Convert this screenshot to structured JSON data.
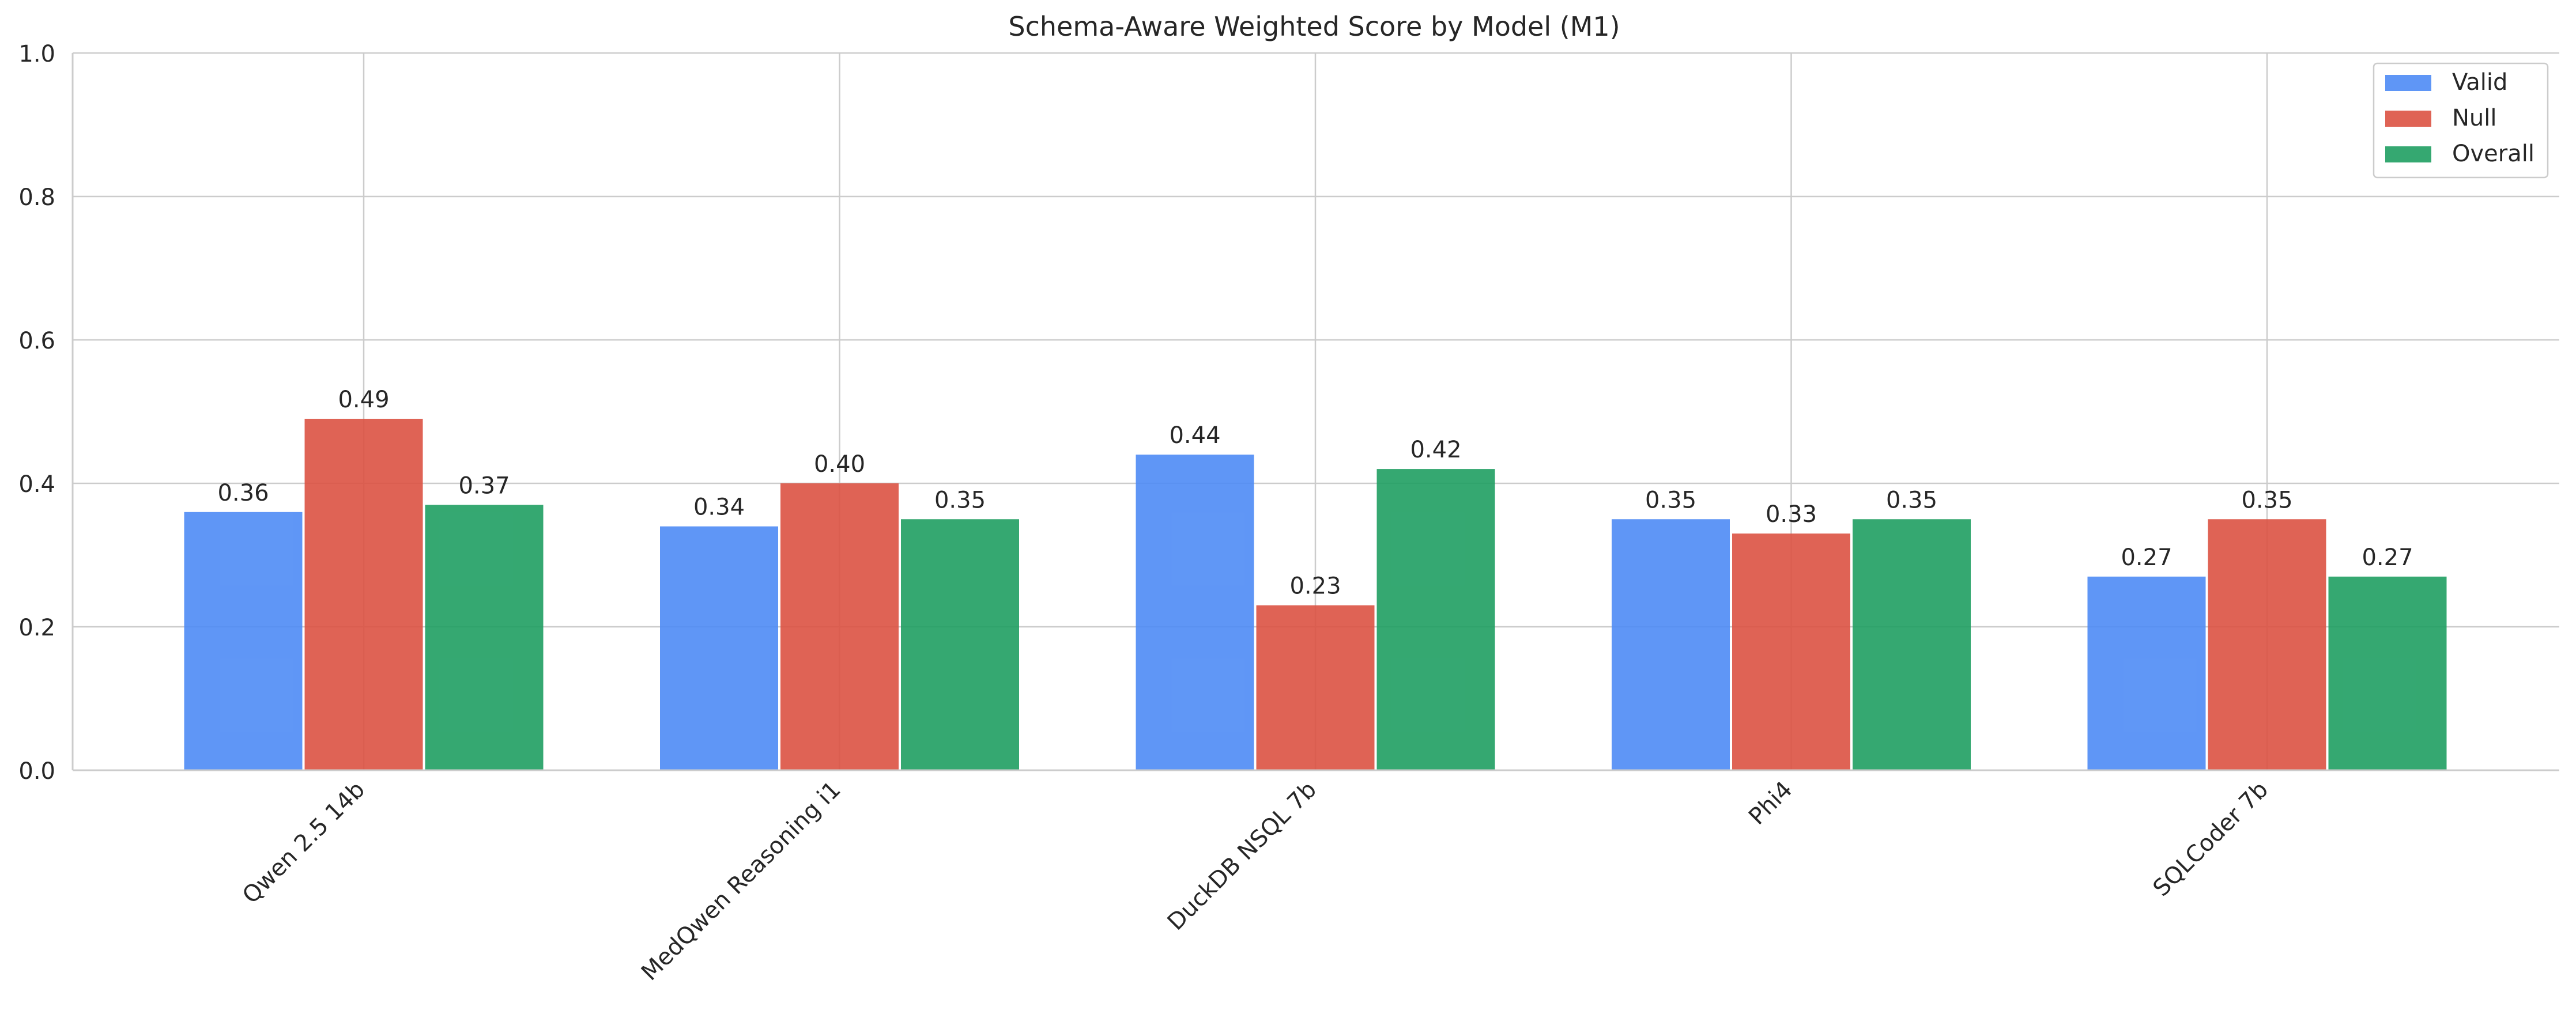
{
  "chart_data": {
    "type": "bar",
    "title": "Schema-Aware Weighted Score by Model (M1)",
    "xlabel": "",
    "ylabel": "",
    "ylim": [
      0,
      1.0
    ],
    "yticks": [
      "0.0",
      "0.2",
      "0.4",
      "0.6",
      "0.8",
      "1.0"
    ],
    "grid": true,
    "legend_position": "top-right",
    "categories": [
      "Qwen 2.5 14b",
      "MedQwen Reasoning i1",
      "DuckDB NSQL 7b",
      "Phi4",
      "SQLCoder 7b"
    ],
    "series": [
      {
        "name": "Valid",
        "color": "#4e8bf5",
        "values": [
          0.36,
          0.34,
          0.44,
          0.35,
          0.27
        ],
        "labels": [
          "0.36",
          "0.34",
          "0.44",
          "0.35",
          "0.27"
        ]
      },
      {
        "name": "Null",
        "color": "#dc5243",
        "values": [
          0.49,
          0.4,
          0.23,
          0.33,
          0.35
        ],
        "labels": [
          "0.49",
          "0.40",
          "0.23",
          "0.33",
          "0.35"
        ]
      },
      {
        "name": "Overall",
        "color": "#1f9e62",
        "values": [
          0.37,
          0.35,
          0.42,
          0.35,
          0.27
        ],
        "labels": [
          "0.37",
          "0.35",
          "0.42",
          "0.35",
          "0.27"
        ]
      }
    ]
  }
}
